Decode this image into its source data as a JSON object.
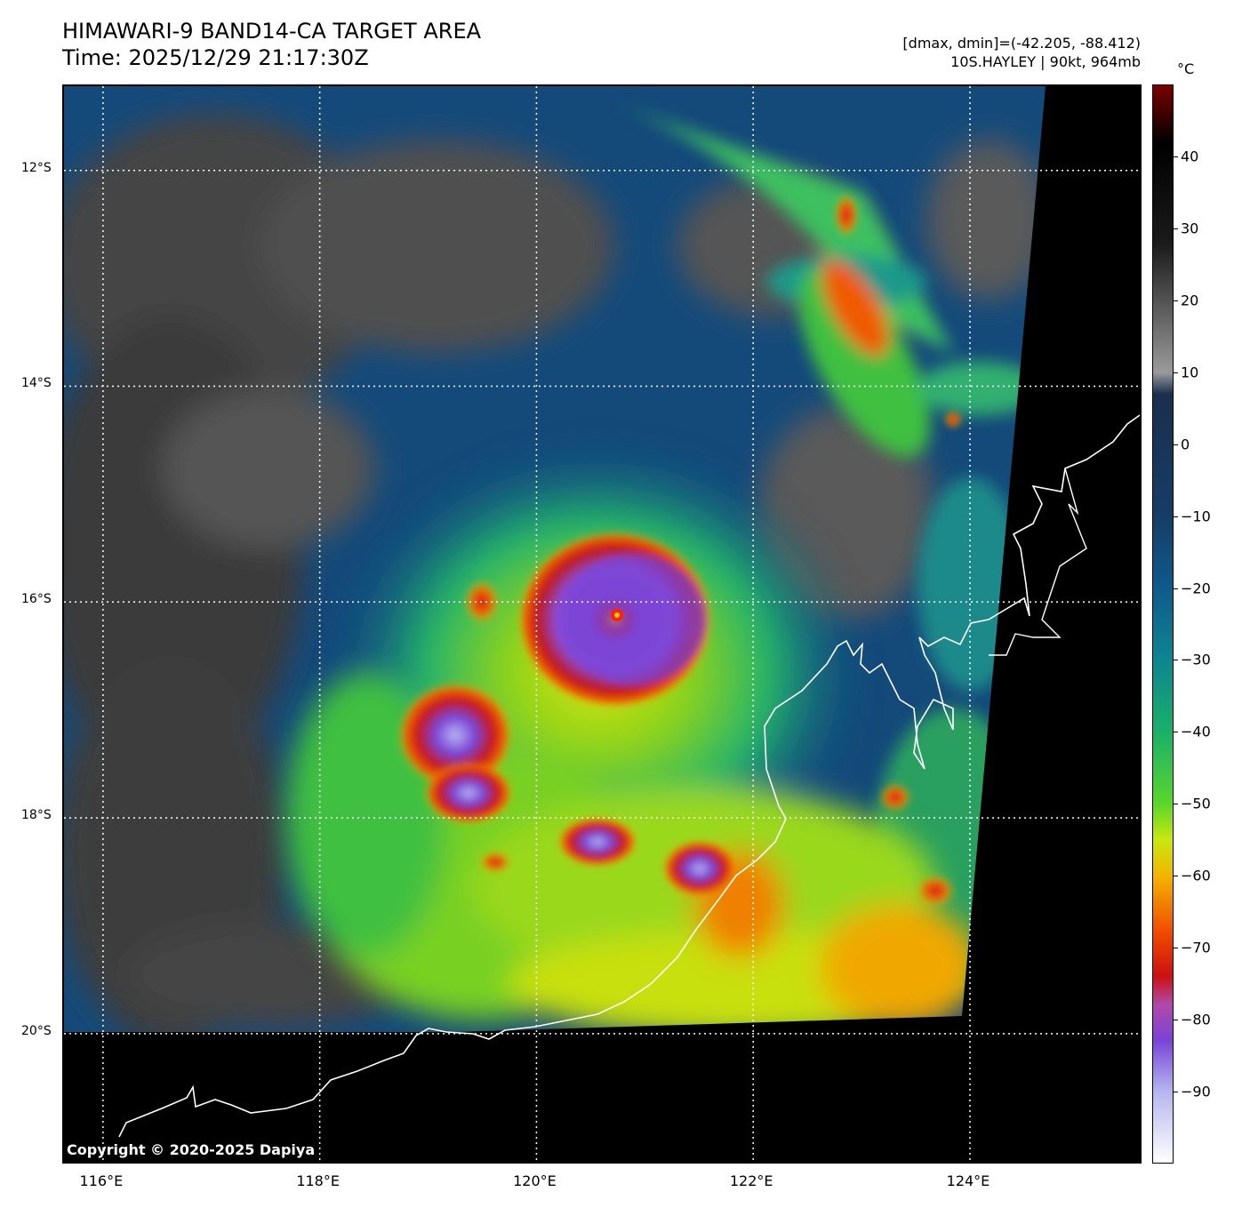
{
  "title": {
    "line1": "HIMAWARI-9 BAND14-CA TARGET AREA",
    "line2": "Time: 2025/12/29 21:17:30Z"
  },
  "meta": {
    "range": "[dmax, dmin]=(-42.205, -88.412)",
    "storm": "10S.HAYLEY | 90kt, 964mb"
  },
  "copyright": "Copyright © 2020-2025 Dapiya",
  "map": {
    "lon_range": [
      115.64,
      125.6
    ],
    "lat_range": [
      -21.22,
      -11.22
    ],
    "lat_ticks": [
      {
        "value": -12,
        "label": "12°S"
      },
      {
        "value": -14,
        "label": "14°S"
      },
      {
        "value": -16,
        "label": "16°S"
      },
      {
        "value": -18,
        "label": "18°S"
      },
      {
        "value": -20,
        "label": "20°S"
      }
    ],
    "lon_ticks": [
      {
        "value": 116,
        "label": "116°E"
      },
      {
        "value": 118,
        "label": "118°E"
      },
      {
        "value": 120,
        "label": "120°E"
      },
      {
        "value": 122,
        "label": "122°E"
      },
      {
        "value": 124,
        "label": "124°E"
      }
    ],
    "grid": true,
    "storm_center": {
      "lon": 120.78,
      "lat": -16.12
    }
  },
  "colorbar": {
    "unit": "°C",
    "range": [
      -100,
      50
    ],
    "ticks": [
      40,
      30,
      20,
      10,
      0,
      -10,
      -20,
      -30,
      -40,
      -50,
      -60,
      -70,
      -80,
      -90
    ],
    "stops": [
      {
        "v": 50,
        "c": "#7a0000"
      },
      {
        "v": 42,
        "c": "#000000"
      },
      {
        "v": 28,
        "c": "#1a1a1a"
      },
      {
        "v": 10,
        "c": "#9a9a9a"
      },
      {
        "v": 7,
        "c": "#1a2f4d"
      },
      {
        "v": -10,
        "c": "#153d66"
      },
      {
        "v": -20,
        "c": "#0f5a8c"
      },
      {
        "v": -30,
        "c": "#0d8690"
      },
      {
        "v": -40,
        "c": "#19b06a"
      },
      {
        "v": -50,
        "c": "#5ad62a"
      },
      {
        "v": -55,
        "c": "#c8e80e"
      },
      {
        "v": -60,
        "c": "#f2b600"
      },
      {
        "v": -68,
        "c": "#f04a00"
      },
      {
        "v": -74,
        "c": "#cc1010"
      },
      {
        "v": -78,
        "c": "#b04aa8"
      },
      {
        "v": -83,
        "c": "#7a44d6"
      },
      {
        "v": -90,
        "c": "#b4b4ee"
      },
      {
        "v": -100,
        "c": "#ffffff"
      }
    ]
  }
}
